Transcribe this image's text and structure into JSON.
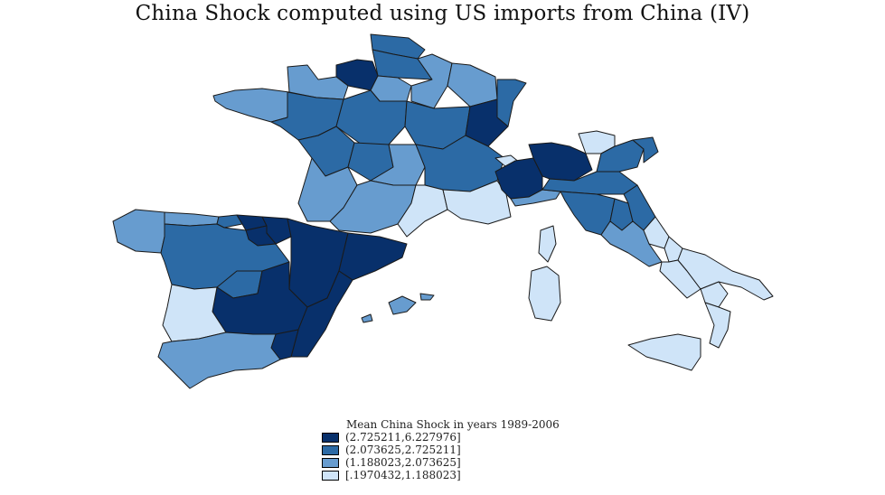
{
  "title": "China Shock computed using US imports from China (IV)",
  "legend": {
    "title": "Mean China Shock in years 1989-2006",
    "items": [
      {
        "label": "(2.725211,6.227976]",
        "color": "#08306b"
      },
      {
        "label": "(2.073625,2.725211]",
        "color": "#2c6aa5"
      },
      {
        "label": "(1.188023,2.073625]",
        "color": "#679ccf"
      },
      {
        "label": "[.1970432,1.188023]",
        "color": "#cfe4f8"
      }
    ]
  },
  "colors": {
    "border": "#1a1a1a",
    "background": "#ffffff"
  }
}
